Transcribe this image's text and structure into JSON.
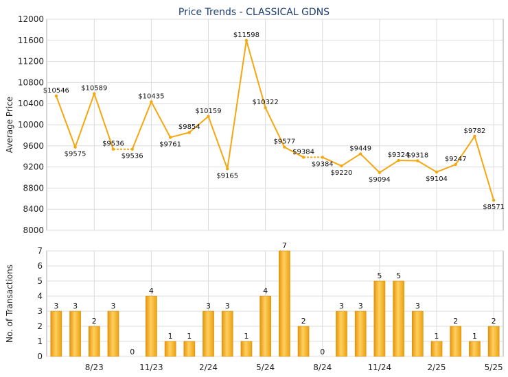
{
  "chart_data": [
    {
      "type": "line",
      "title": "Price Trends - CLASSICAL GDNS",
      "ylabel": "Average Price",
      "ylim": [
        8000,
        12000
      ],
      "yticks": [
        8000,
        8400,
        8800,
        9200,
        9600,
        10000,
        10400,
        10800,
        11200,
        11600,
        12000
      ],
      "grid": true,
      "color": "#F5A70F",
      "values": [
        10546,
        9575,
        10589,
        9536,
        9536,
        10435,
        9761,
        9854,
        10159,
        9165,
        11598,
        10322,
        9577,
        9384,
        9384,
        9220,
        9449,
        9094,
        9324,
        9318,
        9104,
        9247,
        9782,
        8571
      ],
      "labels": [
        "$10546",
        "$9575",
        "$10589",
        "$9536",
        "$9536",
        "$10435",
        "$9761",
        "$9854",
        "$10159",
        "$9165",
        "$11598",
        "$10322",
        "$9577",
        "$9384",
        "$9384",
        "$9220",
        "$9449",
        "$9094",
        "$9324",
        "$9318",
        "$9104",
        "$9247",
        "$9782",
        "$8571"
      ]
    },
    {
      "type": "bar",
      "ylabel": "No. of Transactions",
      "ylim": [
        0,
        7
      ],
      "yticks": [
        0,
        1,
        2,
        3,
        4,
        5,
        6,
        7
      ],
      "grid": true,
      "color": "#F5A70F",
      "values": [
        3,
        3,
        2,
        3,
        0,
        4,
        1,
        1,
        3,
        3,
        1,
        4,
        7,
        2,
        0,
        3,
        3,
        5,
        5,
        3,
        1,
        2,
        1,
        2
      ],
      "xtick_labels": [
        "8/23",
        "11/23",
        "2/24",
        "5/24",
        "8/24",
        "11/24",
        "2/25",
        "5/25"
      ],
      "xtick_index": [
        2,
        5,
        8,
        11,
        14,
        17,
        20,
        23
      ]
    }
  ]
}
